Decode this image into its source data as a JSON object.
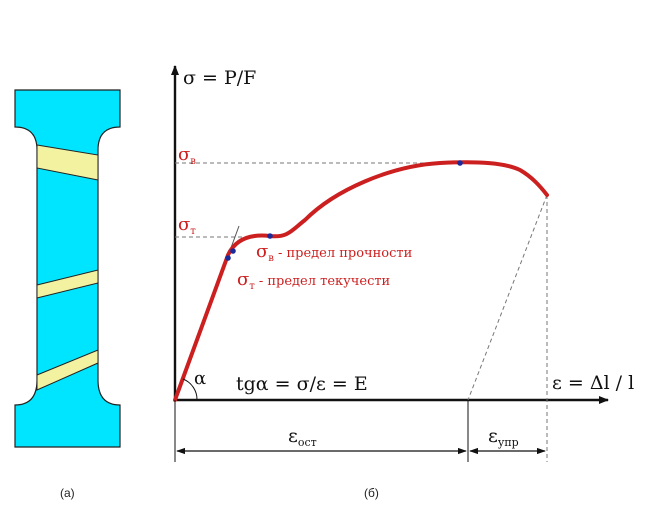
{
  "colors": {
    "specimen_fill": "#00e5ff",
    "band_fill": "#f2f2a0",
    "curve": "#cc1f1f",
    "text_red": "#cc1f1f",
    "axis": "#111111",
    "dot": "#1a2a9a"
  },
  "captions": {
    "left": "(а)",
    "right": "(б)"
  },
  "axes": {
    "y_label": "σ = P/F",
    "x_label": "ε = Δl / l"
  },
  "stress_labels": {
    "sigma_b": {
      "sym": "σ",
      "sub": "в"
    },
    "sigma_t": {
      "sym": "σ",
      "sub": "т"
    }
  },
  "legend": [
    {
      "sym": "σ",
      "sub": "в",
      "text": "- предел прочности"
    },
    {
      "sym": "σ",
      "sub": "т",
      "text": "- предел текучести"
    }
  ],
  "angle_label": "α",
  "formula": "tgα =  σ/ε = E",
  "strain_parts": {
    "ost": {
      "sym": "ε",
      "sub": "ост"
    },
    "upr": {
      "sym": "ε",
      "sub": "упр"
    }
  }
}
